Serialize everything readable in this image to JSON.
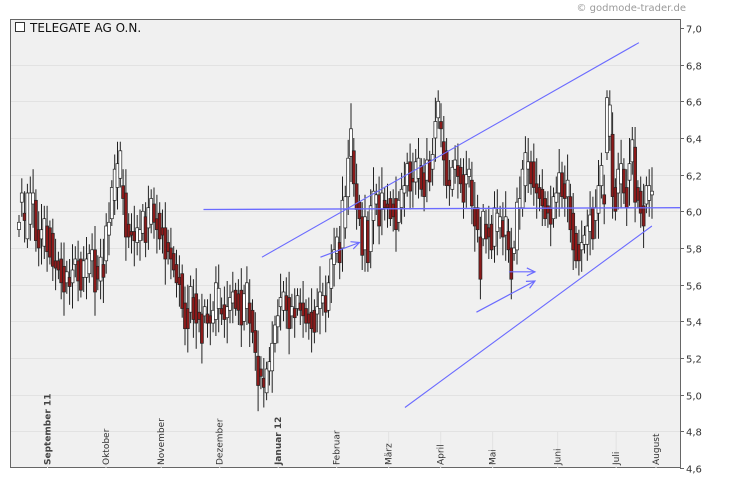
{
  "chart_data": {
    "type": "candlestick",
    "title": "TELEGATE AG O.N.",
    "credit": "© godmode-trader.de",
    "y_axis": {
      "min": 4.6,
      "max": 7.0,
      "ticks": [
        4.6,
        4.8,
        5.0,
        5.2,
        5.4,
        5.6,
        5.8,
        6.0,
        6.2,
        6.4,
        6.6,
        6.8,
        7.0
      ],
      "position": "right"
    },
    "grid": true,
    "x_range": [
      0,
      100
    ],
    "months": [
      {
        "label": "September 11",
        "x": 5,
        "bold": true
      },
      {
        "label": "Oktober",
        "x": 14,
        "bold": false
      },
      {
        "label": "November",
        "x": 22.5,
        "bold": false
      },
      {
        "label": "Dezember",
        "x": 31.5,
        "bold": false
      },
      {
        "label": "Januar 12",
        "x": 40.5,
        "bold": true
      },
      {
        "label": "Februar",
        "x": 49.5,
        "bold": false
      },
      {
        "label": "März",
        "x": 57.5,
        "bold": false
      },
      {
        "label": "April",
        "x": 65.5,
        "bold": false
      },
      {
        "label": "Mai",
        "x": 73.5,
        "bold": false
      },
      {
        "label": "Juni",
        "x": 83.5,
        "bold": false
      },
      {
        "label": "Juli",
        "x": 92.5,
        "bold": false
      },
      {
        "label": "August",
        "x": 101.5,
        "bold": false
      }
    ],
    "series": [
      {
        "points": [
          [
            5.9,
            5.94
          ],
          [
            6.05,
            6.1
          ],
          [
            5.95,
            5.99
          ],
          [
            5.85,
            6.1
          ],
          [
            5.93,
            6.1
          ],
          [
            6.04,
            6.1
          ],
          [
            5.84,
            6.06
          ],
          [
            5.8,
            5.9
          ],
          [
            5.85,
            5.9
          ],
          [
            5.81,
            5.96
          ],
          [
            5.78,
            5.92
          ],
          [
            5.75,
            5.91
          ],
          [
            5.7,
            5.88
          ],
          [
            5.69,
            5.73
          ],
          [
            5.68,
            5.73
          ],
          [
            5.61,
            5.74
          ],
          [
            5.56,
            5.7
          ],
          [
            5.61,
            5.67
          ],
          [
            5.59,
            5.64
          ],
          [
            5.61,
            5.68
          ],
          [
            5.71,
            5.74
          ],
          [
            5.62,
            5.73
          ],
          [
            5.57,
            5.74
          ],
          [
            5.64,
            5.73
          ],
          [
            5.64,
            5.74
          ],
          [
            5.66,
            5.77
          ],
          [
            5.73,
            5.79
          ],
          [
            5.56,
            5.79
          ],
          [
            5.63,
            5.7
          ],
          [
            5.62,
            5.75
          ],
          [
            5.64,
            5.71
          ],
          [
            5.73,
            5.92
          ],
          [
            5.87,
            5.94
          ],
          [
            5.96,
            6.13
          ],
          [
            6.06,
            6.23
          ],
          [
            6.13,
            6.26
          ],
          [
            6.18,
            6.33
          ],
          [
            6.07,
            6.14
          ],
          [
            5.86,
            6.1
          ],
          [
            5.86,
            5.93
          ],
          [
            5.87,
            5.89
          ],
          [
            5.84,
            5.89
          ],
          [
            5.83,
            5.91
          ],
          [
            5.84,
            5.9
          ],
          [
            5.88,
            6.0
          ],
          [
            5.83,
            5.97
          ],
          [
            5.91,
            6.02
          ],
          [
            5.93,
            6.07
          ],
          [
            5.94,
            6.04
          ],
          [
            5.9,
            5.96
          ],
          [
            5.85,
            5.99
          ],
          [
            5.87,
            5.91
          ],
          [
            5.74,
            5.91
          ],
          [
            5.78,
            5.83
          ],
          [
            5.74,
            5.8
          ],
          [
            5.68,
            5.77
          ],
          [
            5.61,
            5.71
          ],
          [
            5.6,
            5.64
          ],
          [
            5.47,
            5.66
          ],
          [
            5.36,
            5.5
          ],
          [
            5.36,
            5.47
          ],
          [
            5.45,
            5.59
          ],
          [
            5.41,
            5.53
          ],
          [
            5.39,
            5.55
          ],
          [
            5.41,
            5.45
          ],
          [
            5.28,
            5.44
          ],
          [
            5.43,
            5.48
          ],
          [
            5.39,
            5.44
          ],
          [
            5.39,
            5.43
          ],
          [
            5.39,
            5.46
          ],
          [
            5.41,
            5.61
          ],
          [
            5.47,
            5.58
          ],
          [
            5.44,
            5.47
          ],
          [
            5.41,
            5.49
          ],
          [
            5.42,
            5.48
          ],
          [
            5.46,
            5.53
          ],
          [
            5.5,
            5.56
          ],
          [
            5.47,
            5.57
          ],
          [
            5.46,
            5.55
          ],
          [
            5.38,
            5.57
          ],
          [
            5.4,
            5.55
          ],
          [
            5.47,
            5.61
          ],
          [
            5.39,
            5.5
          ],
          [
            5.34,
            5.46
          ],
          [
            5.23,
            5.35
          ],
          [
            5.05,
            5.21
          ],
          [
            5.1,
            5.14
          ],
          [
            5.04,
            5.09
          ],
          [
            5.01,
            5.14
          ],
          [
            5.13,
            5.18
          ],
          [
            5.13,
            5.28
          ],
          [
            5.28,
            5.38
          ],
          [
            5.37,
            5.43
          ],
          [
            5.48,
            5.53
          ],
          [
            5.46,
            5.56
          ],
          [
            5.46,
            5.54
          ],
          [
            5.36,
            5.53
          ],
          [
            5.43,
            5.48
          ],
          [
            5.42,
            5.47
          ],
          [
            5.47,
            5.54
          ],
          [
            5.46,
            5.5
          ],
          [
            5.43,
            5.5
          ],
          [
            5.39,
            5.47
          ],
          [
            5.39,
            5.44
          ],
          [
            5.36,
            5.45
          ],
          [
            5.34,
            5.46
          ],
          [
            5.44,
            5.48
          ],
          [
            5.47,
            5.56
          ],
          [
            5.5,
            5.54
          ],
          [
            5.45,
            5.54
          ],
          [
            5.46,
            5.61
          ],
          [
            5.58,
            5.74
          ],
          [
            5.71,
            5.79
          ],
          [
            5.77,
            5.86
          ],
          [
            5.72,
            5.83
          ],
          [
            5.8,
            6.06
          ],
          [
            5.91,
            6.08
          ],
          [
            6.08,
            6.29
          ],
          [
            6.3,
            6.45
          ],
          [
            6.15,
            6.33
          ],
          [
            6.01,
            6.15
          ],
          [
            5.96,
            6.05
          ],
          [
            5.76,
            5.97
          ],
          [
            5.79,
            5.97
          ],
          [
            5.72,
            5.95
          ],
          [
            5.78,
            6.03
          ],
          [
            5.95,
            6.11
          ],
          [
            6.04,
            6.09
          ],
          [
            5.92,
            6.09
          ],
          [
            6.01,
            6.1
          ],
          [
            6.02,
            6.06
          ],
          [
            6.02,
            6.04
          ],
          [
            5.96,
            6.07
          ],
          [
            5.97,
            6.04
          ],
          [
            5.9,
            6.07
          ],
          [
            5.94,
            6.06
          ],
          [
            6.02,
            6.12
          ],
          [
            6.1,
            6.14
          ],
          [
            6.14,
            6.26
          ],
          [
            6.11,
            6.27
          ],
          [
            6.16,
            6.18
          ],
          [
            6.16,
            6.27
          ],
          [
            6.18,
            6.29
          ],
          [
            6.12,
            6.25
          ],
          [
            6.08,
            6.21
          ],
          [
            6.17,
            6.28
          ],
          [
            6.16,
            6.28
          ],
          [
            6.23,
            6.31
          ],
          [
            6.4,
            6.49
          ],
          [
            6.51,
            6.6
          ],
          [
            6.45,
            6.49
          ],
          [
            6.28,
            6.38
          ],
          [
            6.14,
            6.33
          ],
          [
            6.14,
            6.17
          ],
          [
            6.12,
            6.24
          ],
          [
            6.23,
            6.28
          ],
          [
            6.19,
            6.25
          ],
          [
            6.15,
            6.24
          ],
          [
            6.05,
            6.2
          ],
          [
            6.15,
            6.2
          ],
          [
            6.19,
            6.23
          ],
          [
            6.03,
            6.17
          ],
          [
            5.92,
            6.02
          ],
          [
            5.9,
            6.02
          ],
          [
            5.63,
            5.86
          ],
          [
            5.85,
            6.0
          ],
          [
            5.85,
            5.93
          ],
          [
            5.86,
            5.91
          ],
          [
            5.79,
            5.93
          ],
          [
            5.81,
            6.02
          ],
          [
            5.89,
            5.99
          ],
          [
            5.91,
            5.97
          ],
          [
            5.86,
            5.95
          ],
          [
            5.87,
            5.97
          ],
          [
            5.79,
            5.89
          ],
          [
            5.63,
            5.8
          ],
          [
            5.77,
            5.8
          ],
          [
            5.79,
            6.05
          ],
          [
            6.02,
            6.07
          ],
          [
            6.02,
            6.23
          ],
          [
            6.14,
            6.32
          ],
          [
            6.23,
            6.27
          ],
          [
            6.15,
            6.27
          ],
          [
            6.13,
            6.27
          ],
          [
            6.1,
            6.15
          ],
          [
            6.07,
            6.13
          ],
          [
            6.03,
            6.12
          ],
          [
            5.96,
            6.07
          ],
          [
            5.99,
            6.03
          ],
          [
            5.93,
            6.02
          ],
          [
            5.96,
            6.08
          ],
          [
            6.05,
            6.1
          ],
          [
            6.1,
            6.21
          ],
          [
            6.08,
            6.21
          ],
          [
            6.07,
            6.15
          ],
          [
            6.08,
            6.17
          ],
          [
            5.9,
            6.08
          ],
          [
            5.79,
            5.99
          ],
          [
            5.73,
            5.88
          ],
          [
            5.73,
            5.82
          ],
          [
            5.79,
            5.83
          ],
          [
            5.82,
            5.87
          ],
          [
            5.82,
            5.92
          ],
          [
            5.89,
            5.98
          ],
          [
            5.85,
            6.02
          ],
          [
            5.95,
            6.02
          ],
          [
            5.99,
            6.14
          ],
          [
            6.14,
            6.25
          ],
          [
            6.04,
            6.09
          ],
          [
            6.32,
            6.62
          ],
          [
            6.41,
            6.58
          ],
          [
            6.08,
            6.42
          ],
          [
            6.0,
            6.13
          ],
          [
            6.1,
            6.23
          ],
          [
            6.15,
            6.26
          ],
          [
            6.1,
            6.23
          ],
          [
            6.02,
            6.13
          ],
          [
            6.17,
            6.26
          ],
          [
            6.27,
            6.39
          ],
          [
            6.05,
            6.35
          ],
          [
            6.06,
            6.13
          ],
          [
            5.99,
            6.11
          ],
          [
            5.92,
            6.03
          ],
          [
            6.04,
            6.14
          ],
          [
            6.06,
            6.14
          ],
          [
            6.09,
            6.11
          ]
        ]
      }
    ],
    "horizontal_line": {
      "x0": 29,
      "x1": 100,
      "y0": 6.01,
      "y1": 6.02
    },
    "trend_lines": [
      {
        "x0": 60,
        "y0": 4.93,
        "x1": 98,
        "y1": 5.92
      },
      {
        "x0": 38,
        "y0": 5.75,
        "x1": 96,
        "y1": 6.92
      }
    ],
    "arrows": [
      {
        "x0": 47,
        "y0": 5.75,
        "x1": 53,
        "y1": 5.83
      },
      {
        "x0": 71,
        "y0": 5.45,
        "x1": 80,
        "y1": 5.62
      },
      {
        "x0": 76,
        "y0": 5.67,
        "x1": 80,
        "y1": 5.67
      }
    ]
  }
}
